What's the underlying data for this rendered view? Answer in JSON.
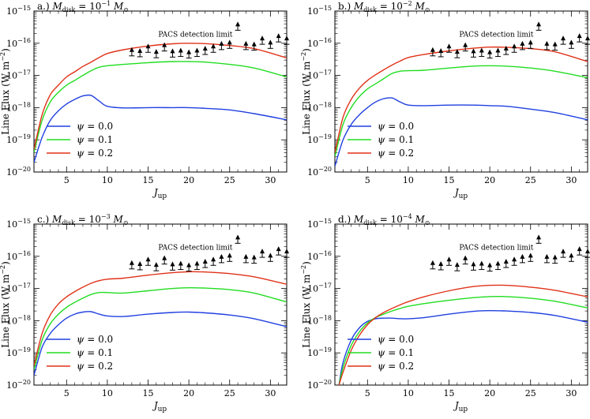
{
  "colors": {
    "blue": "#2040e0",
    "green": "#22dd22",
    "red": "#e03218",
    "marker": "#000000"
  },
  "chart_data": [
    {
      "type": "line",
      "title": "a.)  M_disk = 10^-1 M_⊙",
      "panel_label": "a.)",
      "mass_label": "M",
      "mass_sub": "disk",
      "mass_exp": "−1",
      "xlabel": "J",
      "xlabel_sub": "up",
      "ylabel": "Line Flux (W m",
      "ylabel_exp": "−2",
      "xlim": [
        1,
        32
      ],
      "ylim_log10": [
        -20,
        -15
      ],
      "y_scale": "log",
      "x_ticks": [
        5,
        10,
        15,
        20,
        25,
        30
      ],
      "y_ticks": [
        -20,
        -19,
        -18,
        -17,
        -16,
        -15
      ],
      "y_tick_labels": [
        "10^-20",
        "10^-19",
        "10^-18",
        "10^-17",
        "10^-16",
        "10^-15"
      ],
      "annotation": "PACS detection limit",
      "legend": [
        "ψ = 0.0",
        "ψ = 0.1",
        "ψ = 0.2"
      ],
      "legend_placement": "lower-left",
      "series": [
        {
          "name": "ψ = 0.0",
          "color": "blue",
          "x": [
            1,
            2,
            3,
            4,
            5,
            6,
            7,
            8,
            9,
            10,
            12,
            15,
            18,
            20,
            22,
            25,
            28,
            32
          ],
          "y": [
            2e-20,
            1.2e-19,
            4e-19,
            8e-19,
            1.3e-18,
            1.8e-18,
            2.3e-18,
            2.4e-18,
            1.6e-18,
            1.1e-18,
            9.8e-19,
            1e-18,
            1e-18,
            1e-18,
            9.5e-19,
            8.5e-19,
            6.5e-19,
            4.2e-19
          ]
        },
        {
          "name": "ψ = 0.1",
          "color": "green",
          "x": [
            1,
            2,
            3,
            4,
            5,
            6,
            7,
            8,
            9,
            10,
            12,
            15,
            18,
            20,
            22,
            25,
            28,
            32
          ],
          "y": [
            4e-20,
            4e-19,
            1.5e-18,
            3e-18,
            5e-18,
            7e-18,
            1e-17,
            1.4e-17,
            1.8e-17,
            2e-17,
            2.2e-17,
            2.5e-17,
            2.7e-17,
            2.7e-17,
            2.6e-17,
            2.2e-17,
            1.7e-17,
            9e-18
          ]
        },
        {
          "name": "ψ = 0.2",
          "color": "red",
          "x": [
            1,
            2,
            3,
            4,
            5,
            6,
            7,
            8,
            9,
            10,
            12,
            15,
            18,
            20,
            22,
            25,
            28,
            32
          ],
          "y": [
            5e-20,
            6e-19,
            2.5e-18,
            5e-18,
            9e-18,
            1.3e-17,
            1.9e-17,
            2.6e-17,
            3.6e-17,
            4.8e-17,
            6.3e-17,
            8.2e-17,
            9.6e-17,
            1e-16,
            9.7e-17,
            8.5e-17,
            6.8e-17,
            3.5e-17
          ]
        }
      ],
      "detection_limits": {
        "x": [
          13,
          14,
          15,
          16,
          17,
          18,
          19,
          20,
          21,
          22,
          23,
          24,
          25,
          26,
          27,
          28,
          29,
          30,
          31,
          32
        ],
        "y": [
          4.8e-17,
          4.5e-17,
          6.2e-17,
          4.2e-17,
          6.8e-17,
          4.4e-17,
          4.6e-17,
          4.1e-17,
          4.6e-17,
          5.3e-17,
          6.2e-17,
          7.5e-17,
          8.2e-17,
          3e-16,
          7.5e-17,
          7.2e-17,
          1.1e-16,
          8.2e-17,
          1.3e-16,
          1.1e-16
        ]
      }
    },
    {
      "type": "line",
      "title": "b.)  M_disk = 10^-2 M_⊙",
      "panel_label": "b.)",
      "mass_label": "M",
      "mass_sub": "disk",
      "mass_exp": "−2",
      "xlabel": "J",
      "xlabel_sub": "up",
      "ylabel": "Line Flux (W m",
      "ylabel_exp": "−2",
      "xlim": [
        1,
        32
      ],
      "ylim_log10": [
        -20,
        -15
      ],
      "y_scale": "log",
      "x_ticks": [
        5,
        10,
        15,
        20,
        25,
        30
      ],
      "y_ticks": [
        -20,
        -19,
        -18,
        -17,
        -16,
        -15
      ],
      "y_tick_labels": [
        "10^-20",
        "10^-19",
        "10^-18",
        "10^-17",
        "10^-16",
        "10^-15"
      ],
      "annotation": "PACS detection limit",
      "legend": [
        "ψ = 0.0",
        "ψ = 0.1",
        "ψ = 0.2"
      ],
      "legend_placement": "lower-left",
      "series": [
        {
          "name": "ψ = 0.0",
          "color": "blue",
          "x": [
            1,
            2,
            3,
            4,
            5,
            6,
            7,
            8,
            9,
            10,
            12,
            15,
            18,
            20,
            22,
            25,
            28,
            32
          ],
          "y": [
            1.5e-20,
            1e-19,
            3e-19,
            6e-19,
            1e-18,
            1.5e-18,
            1.9e-18,
            2e-18,
            1.5e-18,
            1.2e-18,
            1.15e-18,
            1.2e-18,
            1.2e-18,
            1.15e-18,
            1.1e-18,
            9e-19,
            7e-19,
            4.2e-19
          ]
        },
        {
          "name": "ψ = 0.1",
          "color": "green",
          "x": [
            1,
            2,
            3,
            4,
            5,
            6,
            7,
            8,
            9,
            10,
            12,
            15,
            18,
            20,
            22,
            25,
            28,
            32
          ],
          "y": [
            3e-20,
            3e-19,
            1e-18,
            2.2e-18,
            3.8e-18,
            5.5e-18,
            8e-18,
            1.15e-17,
            1.35e-17,
            1.4e-17,
            1.45e-17,
            1.7e-17,
            1.95e-17,
            2e-17,
            1.95e-17,
            1.7e-17,
            1.35e-17,
            8.5e-18
          ]
        },
        {
          "name": "ψ = 0.2",
          "color": "red",
          "x": [
            1,
            2,
            3,
            4,
            5,
            6,
            7,
            8,
            9,
            10,
            12,
            15,
            18,
            20,
            22,
            25,
            28,
            32
          ],
          "y": [
            4e-20,
            5e-19,
            1.8e-18,
            4e-18,
            7e-18,
            1.05e-17,
            1.5e-17,
            2.1e-17,
            2.8e-17,
            3.6e-17,
            4.5e-17,
            5.8e-17,
            7e-17,
            7.6e-17,
            7.5e-17,
            6.8e-17,
            5.4e-17,
            2.7e-17
          ]
        }
      ],
      "detection_limits": {
        "x": [
          13,
          14,
          15,
          16,
          17,
          18,
          19,
          20,
          21,
          22,
          23,
          24,
          25,
          26,
          27,
          28,
          29,
          30,
          31,
          32
        ],
        "y": [
          4.8e-17,
          4.5e-17,
          6.2e-17,
          4.2e-17,
          6.8e-17,
          4.4e-17,
          4.6e-17,
          4.1e-17,
          4.6e-17,
          5.3e-17,
          6.2e-17,
          7.5e-17,
          8.2e-17,
          3e-16,
          7.5e-17,
          7.2e-17,
          1.1e-16,
          8.2e-17,
          1.3e-16,
          1.1e-16
        ]
      }
    },
    {
      "type": "line",
      "title": "c.)  M_disk = 10^-3 M_⊙",
      "panel_label": "c.)",
      "mass_label": "M",
      "mass_sub": "disk",
      "mass_exp": "−3",
      "xlabel": "J",
      "xlabel_sub": "up",
      "ylabel": "Line Flux (W m",
      "ylabel_exp": "−2",
      "xlim": [
        1,
        32
      ],
      "ylim_log10": [
        -20,
        -15
      ],
      "y_scale": "log",
      "x_ticks": [
        5,
        10,
        15,
        20,
        25,
        30
      ],
      "y_ticks": [
        -20,
        -19,
        -18,
        -17,
        -16,
        -15
      ],
      "y_tick_labels": [
        "10^-20",
        "10^-19",
        "10^-18",
        "10^-17",
        "10^-16",
        "10^-15"
      ],
      "annotation": "PACS detection limit",
      "legend": [
        "ψ = 0.0",
        "ψ = 0.1",
        "ψ = 0.2"
      ],
      "legend_placement": "lower-left",
      "series": [
        {
          "name": "ψ = 0.0",
          "color": "blue",
          "x": [
            1,
            2,
            3,
            4,
            5,
            6,
            7,
            8,
            9,
            10,
            12,
            15,
            18,
            20,
            22,
            25,
            28,
            32
          ],
          "y": [
            2e-20,
            1.5e-19,
            4e-19,
            7.5e-19,
            1.2e-18,
            1.6e-18,
            1.85e-18,
            1.9e-18,
            1.6e-18,
            1.4e-18,
            1.35e-18,
            1.6e-18,
            1.8e-18,
            1.85e-18,
            1.75e-18,
            1.5e-18,
            1.15e-18,
            6.5e-19
          ]
        },
        {
          "name": "ψ = 0.1",
          "color": "green",
          "x": [
            1,
            2,
            3,
            4,
            5,
            6,
            7,
            8,
            9,
            10,
            12,
            15,
            18,
            20,
            22,
            25,
            28,
            32
          ],
          "y": [
            3e-20,
            2.5e-19,
            8e-19,
            1.6e-18,
            2.6e-18,
            3.7e-18,
            5e-18,
            6.5e-18,
            7.5e-18,
            7.5e-18,
            7.2e-18,
            8.5e-18,
            1e-17,
            1.05e-17,
            1.03e-17,
            9.2e-18,
            7.2e-18,
            3.8e-18
          ]
        },
        {
          "name": "ψ = 0.2",
          "color": "red",
          "x": [
            1,
            2,
            3,
            4,
            5,
            6,
            7,
            8,
            9,
            10,
            12,
            15,
            18,
            20,
            22,
            25,
            28,
            32
          ],
          "y": [
            4e-20,
            4e-19,
            1.5e-18,
            3.3e-18,
            5.5e-18,
            8e-18,
            1.1e-17,
            1.45e-17,
            1.75e-17,
            1.95e-17,
            2.1e-17,
            2.6e-17,
            3.1e-17,
            3.3e-17,
            3.25e-17,
            2.9e-17,
            2.3e-17,
            1.35e-17
          ]
        }
      ],
      "detection_limits": {
        "x": [
          13,
          14,
          15,
          16,
          17,
          18,
          19,
          20,
          21,
          22,
          23,
          24,
          25,
          26,
          27,
          28,
          29,
          30,
          31,
          32
        ],
        "y": [
          4.8e-17,
          4.5e-17,
          6.2e-17,
          4.2e-17,
          6.8e-17,
          4.4e-17,
          4.6e-17,
          4.1e-17,
          4.6e-17,
          5.3e-17,
          6.2e-17,
          7.5e-17,
          8.2e-17,
          3e-16,
          7.5e-17,
          7.2e-17,
          1.1e-16,
          8.2e-17,
          1.3e-16,
          1.1e-16
        ]
      }
    },
    {
      "type": "line",
      "title": "d.)  M_disk = 10^-4 M_⊙",
      "panel_label": "d.)",
      "mass_label": "M",
      "mass_sub": "disk",
      "mass_exp": "−4",
      "xlabel": "J",
      "xlabel_sub": "up",
      "ylabel": "Line Flux (W m",
      "ylabel_exp": "−2",
      "xlim": [
        1,
        32
      ],
      "ylim_log10": [
        -20,
        -15
      ],
      "y_scale": "log",
      "x_ticks": [
        5,
        10,
        15,
        20,
        25,
        30
      ],
      "y_ticks": [
        -20,
        -19,
        -18,
        -17,
        -16,
        -15
      ],
      "y_tick_labels": [
        "10^-20",
        "10^-19",
        "10^-18",
        "10^-17",
        "10^-16",
        "10^-15"
      ],
      "annotation": "PACS detection limit",
      "legend": [
        "ψ = 0.0",
        "ψ = 0.1",
        "ψ = 0.2"
      ],
      "legend_placement": "lower-left",
      "series": [
        {
          "name": "ψ = 0.0",
          "color": "blue",
          "x": [
            1.5,
            2,
            3,
            4,
            5,
            6,
            7,
            8,
            9,
            10,
            12,
            15,
            18,
            20,
            22,
            25,
            28,
            32
          ],
          "y": [
            1e-20,
            5e-20,
            2.5e-19,
            6e-19,
            9.5e-19,
            1.15e-18,
            1.2e-18,
            1.2e-18,
            1.15e-18,
            1.15e-18,
            1.25e-18,
            1.6e-18,
            1.95e-18,
            2.05e-18,
            2e-18,
            1.8e-18,
            1.45e-18,
            9e-19
          ]
        },
        {
          "name": "ψ = 0.1",
          "color": "green",
          "x": [
            1.5,
            2,
            3,
            4,
            5,
            6,
            7,
            8,
            9,
            10,
            12,
            15,
            18,
            20,
            22,
            25,
            28,
            32
          ],
          "y": [
            1e-20,
            3.5e-20,
            1.7e-19,
            4.5e-19,
            8.5e-19,
            1.25e-18,
            1.6e-18,
            2e-18,
            2.4e-18,
            2.8e-18,
            3.4e-18,
            4.3e-18,
            5.2e-18,
            5.6e-18,
            5.6e-18,
            5e-18,
            4e-18,
            2.5e-18
          ]
        },
        {
          "name": "ψ = 0.2",
          "color": "red",
          "x": [
            1.5,
            2,
            3,
            4,
            5,
            6,
            7,
            8,
            9,
            10,
            12,
            15,
            18,
            20,
            22,
            25,
            28,
            32
          ],
          "y": [
            1e-20,
            2.5e-20,
            1.2e-19,
            3.5e-19,
            7.5e-19,
            1.25e-18,
            1.8e-18,
            2.4e-18,
            3.1e-18,
            3.9e-18,
            5.6e-18,
            8.5e-18,
            1.15e-17,
            1.25e-17,
            1.25e-17,
            1.1e-17,
            8.8e-18,
            5.5e-18
          ]
        }
      ],
      "detection_limits": {
        "x": [
          13,
          14,
          15,
          16,
          17,
          18,
          19,
          20,
          21,
          22,
          23,
          24,
          25,
          26,
          27,
          28,
          29,
          30,
          31,
          32
        ],
        "y": [
          4.8e-17,
          4.5e-17,
          6.2e-17,
          4.2e-17,
          6.8e-17,
          4.4e-17,
          4.6e-17,
          4.1e-17,
          4.6e-17,
          5.3e-17,
          6.2e-17,
          7.5e-17,
          8.2e-17,
          3e-16,
          7.5e-17,
          7.2e-17,
          1.1e-16,
          8.2e-17,
          1.3e-16,
          1.1e-16
        ]
      }
    }
  ]
}
